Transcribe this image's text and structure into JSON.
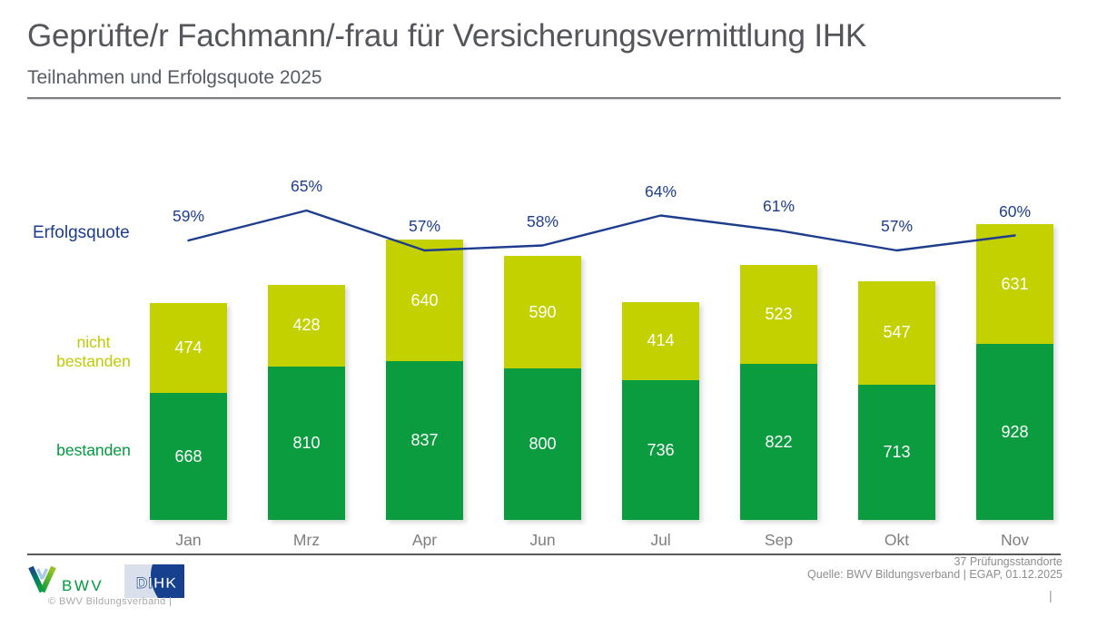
{
  "header": {
    "title": "Geprüfte/r Fachmann/-frau für Versicherungsvermittlung IHK",
    "subtitle": "Teilnahmen und Erfolgsquote 2025"
  },
  "legend": {
    "erfolgsquote": "Erfolgsquote",
    "nicht_line1": "nicht",
    "nicht_line2": "bestanden",
    "bestanden": "bestanden"
  },
  "colors": {
    "green": "#0C9C40",
    "yellow_green": "#C3D100",
    "navy": "#1E3D8F",
    "title_gray": "#54565C",
    "axis_gray": "#7E7E7E"
  },
  "chart_data": {
    "type": "bar",
    "variant": "stacked-columns-with-line",
    "title": "Geprüfte/r Fachmann/-frau für Versicherungsvermittlung IHK",
    "subtitle": "Teilnahmen und Erfolgsquote 2025",
    "categories": [
      "Jan",
      "Mrz",
      "Apr",
      "Jun",
      "Jul",
      "Sep",
      "Okt",
      "Nov"
    ],
    "series": [
      {
        "name": "bestanden",
        "color": "#0C9C40",
        "values": [
          668,
          810,
          837,
          800,
          736,
          822,
          713,
          928
        ]
      },
      {
        "name": "nicht bestanden",
        "color": "#C3D100",
        "values": [
          474,
          428,
          640,
          590,
          414,
          523,
          547,
          631
        ]
      }
    ],
    "line": {
      "name": "Erfolgsquote",
      "color": "#1E3D8F",
      "unit": "%",
      "values": [
        59,
        65,
        57,
        58,
        64,
        61,
        57,
        60
      ]
    },
    "legend_position": "left",
    "grid": false,
    "value_labels": "inside-white",
    "ylim_implied": [
      0,
      1600
    ]
  },
  "footer": {
    "bwv_logo_text": "BWV",
    "dihk_logo_text": "DIHK",
    "copyright": "© BWV Bildungsverband |",
    "standorte": "37 Prüfungsstandorte",
    "quelle": "Quelle: BWV Bildungsverband | EGAP, 01.12.2025",
    "page_separator": "|"
  }
}
